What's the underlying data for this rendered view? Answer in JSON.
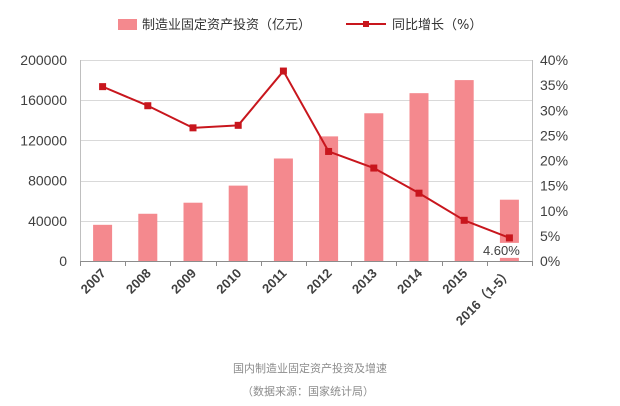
{
  "chart_data": {
    "type": "bar",
    "title": "国内制造业固定资产投资及增速",
    "source": "（数据来源：国家统计局）",
    "categories": [
      "2007",
      "2008",
      "2009",
      "2010",
      "2011",
      "2012",
      "2013",
      "2014",
      "2015",
      "2016（1-5）"
    ],
    "series": [
      {
        "name": "制造业固定资产投资（亿元）",
        "type": "bar",
        "axis": "left",
        "values": [
          36000,
          47000,
          58000,
          75000,
          102000,
          124000,
          147000,
          167000,
          180000,
          61000
        ]
      },
      {
        "name": "同比增长（%）",
        "type": "line",
        "axis": "right",
        "values": [
          34.7,
          30.9,
          26.5,
          27.0,
          37.8,
          21.8,
          18.5,
          13.5,
          8.1,
          4.6
        ]
      }
    ],
    "ylim": [
      0,
      200000
    ],
    "y2lim": [
      0,
      40
    ],
    "y_ticks": [
      "0",
      "40000",
      "80000",
      "120000",
      "160000",
      "200000"
    ],
    "y2_ticks": [
      "0%",
      "5%",
      "10%",
      "15%",
      "20%",
      "25%",
      "30%",
      "35%",
      "40%"
    ],
    "data_labels": [
      {
        "category": "2016（1-5）",
        "series": 1,
        "text": "4.60%"
      }
    ],
    "grid": true,
    "legend": "top",
    "colors": {
      "bar": "#f4898e",
      "line": "#c8161d",
      "grid": "#d9d9d9",
      "axis": "#8c8c8c"
    }
  }
}
